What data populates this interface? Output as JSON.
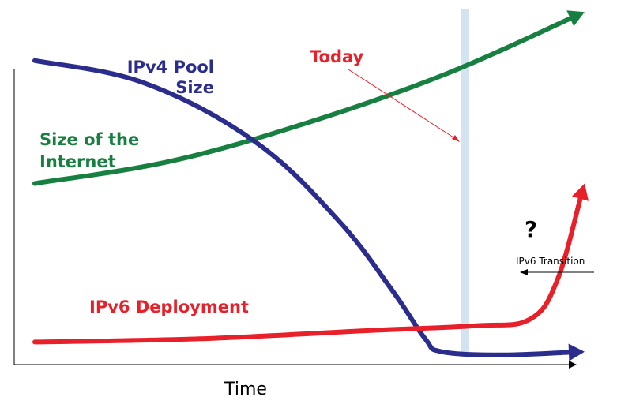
{
  "chart_data": {
    "type": "line",
    "title": "",
    "xlabel": "Time",
    "ylabel": "",
    "grid": false,
    "annotations": {
      "today": "Today",
      "question": "?",
      "transition": "IPv6 Transition"
    },
    "series": [
      {
        "name": "Size of the Internet",
        "label_lines": [
          "Size of the",
          "Internet"
        ],
        "color": "#178040",
        "points": [
          [
            0.0,
            0.55
          ],
          [
            0.25,
            0.62
          ],
          [
            0.5,
            0.74
          ],
          [
            0.75,
            0.89
          ],
          [
            1.0,
            1.08
          ]
        ]
      },
      {
        "name": "IPv4 Pool Size",
        "label_lines": [
          "IPv4 Pool",
          "Size"
        ],
        "color": "#2b2d8c",
        "points": [
          [
            0.0,
            0.93
          ],
          [
            0.2,
            0.86
          ],
          [
            0.4,
            0.68
          ],
          [
            0.55,
            0.44
          ],
          [
            0.65,
            0.22
          ],
          [
            0.71,
            0.07
          ],
          [
            0.74,
            0.03
          ],
          [
            0.85,
            0.02
          ],
          [
            1.0,
            0.03
          ]
        ]
      },
      {
        "name": "IPv6 Deployment",
        "label_lines": [
          "IPv6 Deployment"
        ],
        "color": "#e8202a",
        "points": [
          [
            0.0,
            0.06
          ],
          [
            0.3,
            0.07
          ],
          [
            0.6,
            0.095
          ],
          [
            0.8,
            0.11
          ],
          [
            0.9,
            0.13
          ],
          [
            0.95,
            0.25
          ],
          [
            1.0,
            0.55
          ]
        ]
      }
    ]
  }
}
